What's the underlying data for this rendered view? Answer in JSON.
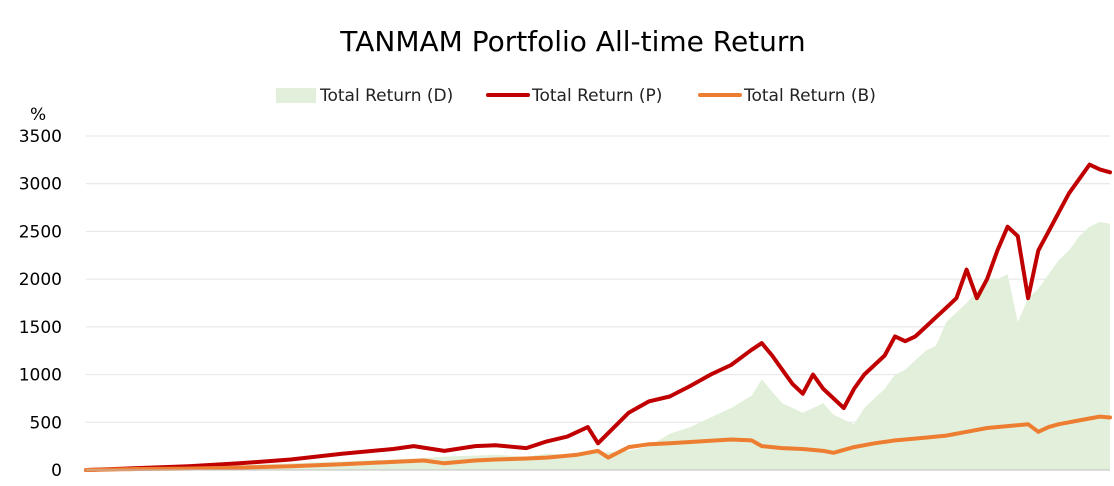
{
  "chart_data": {
    "type": "line",
    "title": "TANMAM Portfolio All-time Return",
    "ylabel": "%",
    "xlabel": "",
    "ylim": [
      0,
      3500
    ],
    "yticks": [
      0,
      500,
      1000,
      1500,
      2000,
      2500,
      3000,
      3500
    ],
    "grid": true,
    "legend_position": "top",
    "x_index_range": [
      0,
      100
    ],
    "series": [
      {
        "name": "Total Return (D)",
        "style": "area",
        "color": "#e2efda",
        "x": [
          0,
          5,
          10,
          15,
          20,
          25,
          30,
          35,
          40,
          43,
          45,
          47,
          50,
          53,
          55,
          57,
          59,
          61,
          63,
          65,
          66,
          67,
          68,
          70,
          72,
          73,
          75,
          76,
          77,
          78,
          79,
          80,
          81,
          82,
          83,
          84,
          85,
          86,
          88,
          89,
          90,
          91,
          92,
          93,
          94,
          95,
          96,
          97,
          98,
          99,
          100
        ],
        "values": [
          0,
          20,
          40,
          50,
          70,
          90,
          110,
          140,
          160,
          140,
          170,
          160,
          180,
          200,
          250,
          380,
          450,
          550,
          650,
          780,
          950,
          820,
          700,
          600,
          700,
          580,
          480,
          650,
          750,
          850,
          1000,
          1050,
          1150,
          1250,
          1300,
          1550,
          1650,
          1750,
          2000,
          2000,
          2050,
          1550,
          1800,
          1900,
          2050,
          2200,
          2300,
          2450,
          2550,
          2600,
          2580
        ]
      },
      {
        "name": "Total Return (P)",
        "style": "line",
        "color": "#c00000",
        "x": [
          0,
          5,
          10,
          15,
          20,
          25,
          30,
          32,
          35,
          38,
          40,
          43,
          45,
          47,
          49,
          50,
          53,
          55,
          57,
          59,
          61,
          63,
          65,
          66,
          67,
          68,
          69,
          70,
          71,
          72,
          73,
          74,
          75,
          76,
          77,
          78,
          79,
          80,
          81,
          82,
          83,
          84,
          85,
          86,
          87,
          88,
          89,
          90,
          91,
          92,
          93,
          94,
          95,
          96,
          97,
          98,
          99,
          100
        ],
        "values": [
          0,
          20,
          40,
          70,
          110,
          170,
          220,
          250,
          200,
          250,
          260,
          230,
          300,
          350,
          450,
          280,
          600,
          720,
          770,
          880,
          1000,
          1100,
          1260,
          1330,
          1200,
          1050,
          900,
          800,
          1000,
          850,
          750,
          650,
          850,
          1000,
          1100,
          1200,
          1400,
          1350,
          1400,
          1500,
          1600,
          1700,
          1800,
          2100,
          1800,
          2000,
          2300,
          2550,
          2450,
          1800,
          2300,
          2500,
          2700,
          2900,
          3050,
          3200,
          3150,
          3120
        ]
      },
      {
        "name": "Total Return (B)",
        "style": "line",
        "color": "#ed7d31",
        "x": [
          0,
          5,
          10,
          15,
          20,
          25,
          30,
          33,
          35,
          38,
          40,
          43,
          45,
          48,
          50,
          51,
          53,
          55,
          57,
          60,
          63,
          65,
          66,
          68,
          70,
          72,
          73,
          75,
          77,
          79,
          80,
          82,
          84,
          86,
          88,
          90,
          92,
          93,
          94,
          95,
          96,
          97,
          98,
          99,
          100
        ],
        "values": [
          0,
          10,
          15,
          25,
          40,
          60,
          85,
          100,
          70,
          100,
          110,
          120,
          130,
          160,
          200,
          130,
          240,
          270,
          280,
          300,
          320,
          310,
          250,
          230,
          220,
          200,
          180,
          240,
          280,
          310,
          320,
          340,
          360,
          400,
          440,
          460,
          480,
          400,
          450,
          480,
          500,
          520,
          540,
          560,
          550
        ]
      }
    ]
  }
}
